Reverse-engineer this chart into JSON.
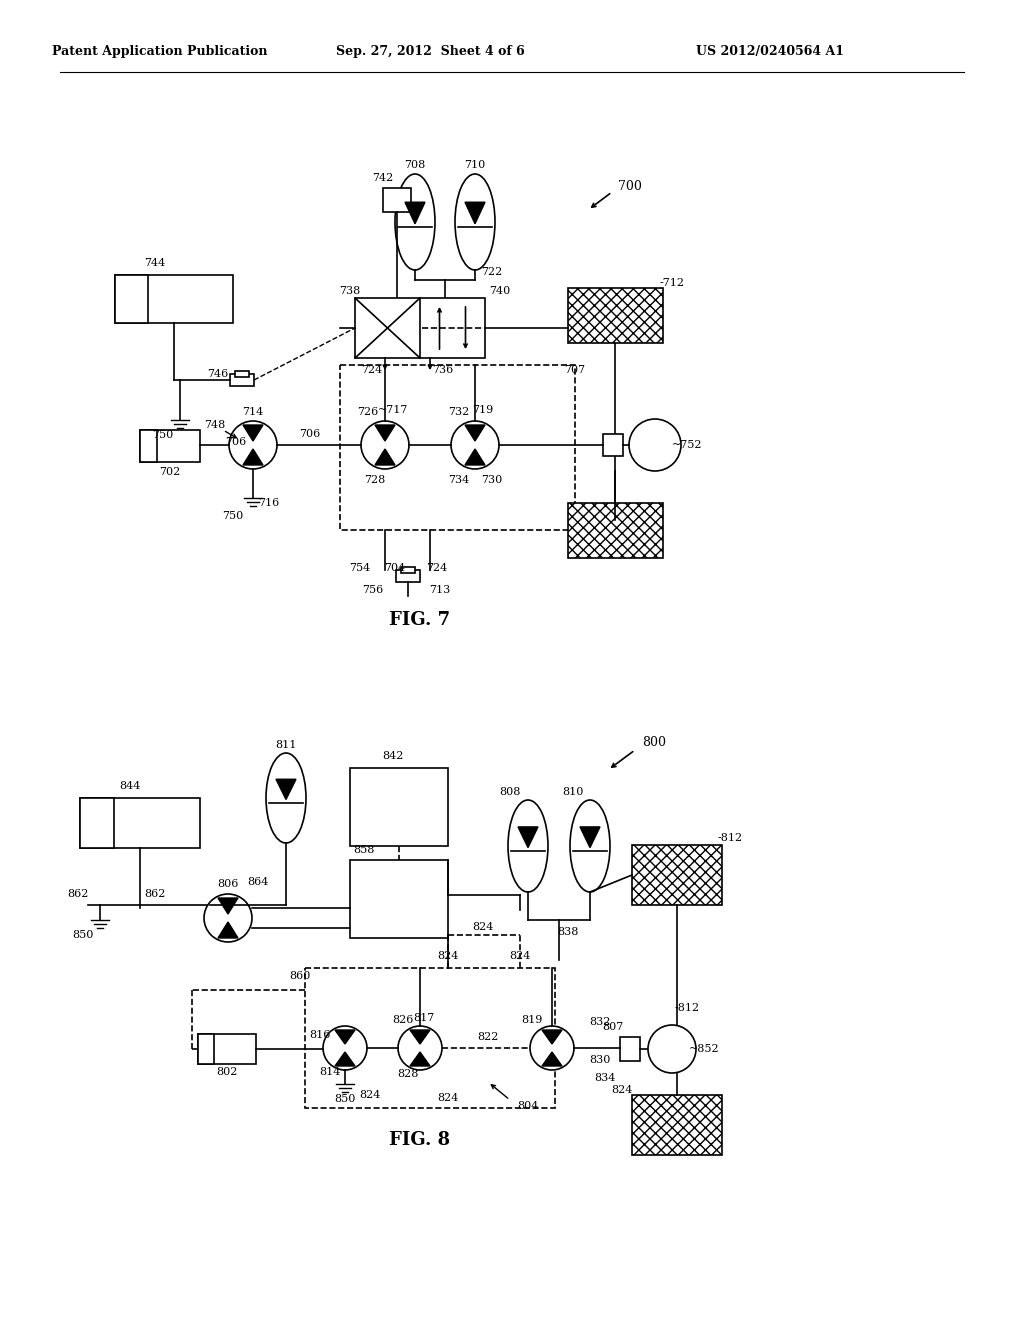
{
  "bg_color": "#ffffff",
  "header_left": "Patent Application Publication",
  "header_mid": "Sep. 27, 2012  Sheet 4 of 6",
  "header_right": "US 2012/0240564 A1",
  "fig7_label": "FIG. 7",
  "fig8_label": "FIG. 8"
}
